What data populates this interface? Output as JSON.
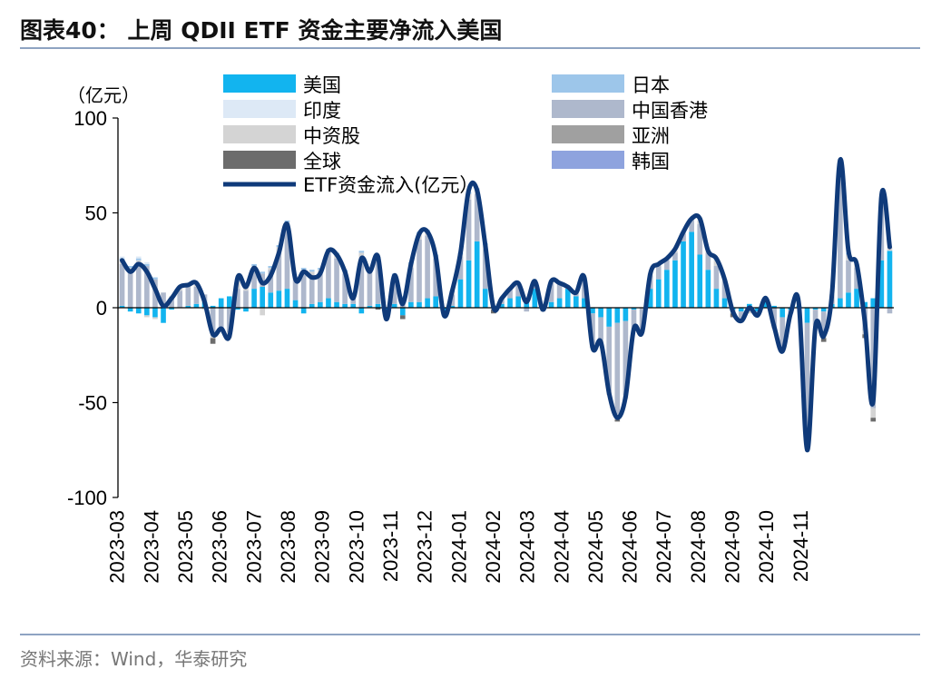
{
  "title": "图表40： 上周 QDII ETF 资金主要净流入美国",
  "source": "资料来源：Wind，华泰研究",
  "chart_data": {
    "type": "bar+line",
    "unit_label": "（亿元）",
    "ylim": [
      -100,
      100
    ],
    "yticks": [
      100,
      50,
      0,
      -50,
      -100
    ],
    "xticks": [
      "2023-03",
      "2023-04",
      "2023-05",
      "2023-06",
      "2023-07",
      "2023-08",
      "2023-09",
      "2023-10",
      "2023-11",
      "2023-12",
      "2024-01",
      "2024-02",
      "2024-03",
      "2024-04",
      "2024-05",
      "2024-06",
      "2024-07",
      "2024-08",
      "2024-09",
      "2024-10",
      "2024-11"
    ],
    "colors": {
      "美国": "#12b4ef",
      "日本": "#9dc6ea",
      "印度": "#dde9f6",
      "中国香港": "#aeb8cc",
      "中资股": "#d4d4d4",
      "亚洲": "#a0a0a0",
      "全球": "#6c6c6c",
      "韩国": "#8ea3de",
      "ETF资金流入": "#0f3a7a"
    },
    "legend": [
      {
        "name": "美国",
        "label": "美国",
        "kind": "bar"
      },
      {
        "name": "日本",
        "label": "日本",
        "kind": "bar"
      },
      {
        "name": "印度",
        "label": "印度",
        "kind": "bar"
      },
      {
        "name": "中国香港",
        "label": "中国香港",
        "kind": "bar"
      },
      {
        "name": "中资股",
        "label": "中资股",
        "kind": "bar"
      },
      {
        "name": "亚洲",
        "label": "亚洲",
        "kind": "bar"
      },
      {
        "name": "全球",
        "label": "全球",
        "kind": "bar"
      },
      {
        "name": "韩国",
        "label": "韩国",
        "kind": "bar"
      },
      {
        "name": "ETF资金流入",
        "label": "ETF资金流入(亿元）",
        "kind": "line"
      }
    ],
    "line": {
      "name": "ETF资金流入",
      "values": [
        25,
        19,
        23,
        19,
        10,
        1,
        5,
        11,
        12,
        13,
        3,
        -14,
        -11,
        -15,
        16,
        11,
        21,
        13,
        17,
        29,
        44,
        15,
        19,
        16,
        18,
        30,
        28,
        19,
        5,
        26,
        19,
        27,
        -6,
        17,
        2,
        23,
        39,
        40,
        27,
        -4,
        9,
        29,
        62,
        62,
        33,
        0,
        5,
        10,
        13,
        3,
        14,
        -1,
        14,
        13,
        11,
        8,
        16,
        -21,
        -18,
        -45,
        -58,
        -47,
        -11,
        -13,
        18,
        23,
        26,
        31,
        40,
        47,
        47,
        30,
        26,
        15,
        -2,
        -7,
        0,
        -4,
        5,
        -10,
        -23,
        -3,
        2,
        -75,
        -10,
        -15,
        7,
        78,
        30,
        23,
        -8,
        -49,
        59,
        32
      ]
    },
    "series": [
      {
        "name": "美国",
        "values": [
          1,
          -2,
          -3,
          -4,
          -5,
          -8,
          -1,
          0,
          1,
          2,
          3,
          1,
          5,
          6,
          -1,
          -2,
          10,
          11,
          8,
          9,
          10,
          4,
          -3,
          2,
          3,
          5,
          3,
          2,
          2,
          -3,
          1,
          2,
          -1,
          2,
          -4,
          3,
          3,
          5,
          6,
          -2,
          1,
          15,
          25,
          35,
          10,
          1,
          2,
          5,
          6,
          5,
          10,
          -1,
          3,
          5,
          10,
          6,
          5,
          -3,
          -5,
          -10,
          -8,
          -7,
          -1,
          0,
          10,
          15,
          20,
          25,
          35,
          40,
          28,
          20,
          10,
          5,
          -1,
          -2,
          2,
          -2,
          3,
          1,
          -5,
          -1,
          1,
          -8,
          -1,
          -2,
          2,
          5,
          8,
          10,
          3,
          5,
          25,
          30
        ]
      },
      {
        "name": "中国香港",
        "values": [
          22,
          20,
          24,
          22,
          15,
          8,
          5,
          9,
          10,
          9,
          4,
          -14,
          -12,
          -13,
          10,
          9,
          10,
          7,
          12,
          20,
          34,
          12,
          18,
          14,
          15,
          24,
          23,
          16,
          4,
          24,
          18,
          23,
          -5,
          14,
          4,
          18,
          33,
          33,
          20,
          -1,
          6,
          12,
          32,
          25,
          21,
          0,
          3,
          5,
          6,
          -2,
          4,
          -1,
          10,
          7,
          1,
          2,
          10,
          -16,
          -12,
          -34,
          -48,
          -39,
          -9,
          -12,
          7,
          7,
          5,
          4,
          4,
          6,
          16,
          9,
          12,
          9,
          -1,
          -4,
          -2,
          -2,
          2,
          -10,
          -17,
          -2,
          0,
          -60,
          -8,
          -12,
          4,
          63,
          17,
          11,
          -12,
          -53,
          30,
          -3
        ]
      },
      {
        "name": "中资股",
        "values": [
          2,
          1,
          1,
          -1,
          -1,
          0,
          1,
          1,
          1,
          1,
          -1,
          -2,
          0,
          -3,
          4,
          2,
          2,
          -4,
          1,
          3,
          1,
          0,
          2,
          3,
          2,
          1,
          2,
          1,
          0,
          5,
          1,
          1,
          0,
          1,
          1,
          2,
          3,
          2,
          1,
          -1,
          1,
          1,
          3,
          2,
          2,
          -1,
          0,
          0,
          1,
          0,
          0,
          0,
          1,
          1,
          0,
          0,
          1,
          -2,
          -1,
          -2,
          -3,
          -2,
          -1,
          -1,
          1,
          1,
          1,
          1,
          1,
          1,
          2,
          1,
          3,
          1,
          -1,
          -1,
          -1,
          0,
          0,
          -1,
          -1,
          0,
          0,
          -3,
          -1,
          -2,
          1,
          5,
          3,
          2,
          -2,
          -5,
          3,
          2
        ]
      },
      {
        "name": "日本",
        "values": [
          1,
          1,
          1,
          1,
          1,
          0,
          0,
          0,
          0,
          0,
          0,
          0,
          0,
          0,
          1,
          1,
          1,
          1,
          1,
          1,
          1,
          0,
          1,
          1,
          1,
          1,
          1,
          1,
          0,
          1,
          1,
          1,
          0,
          1,
          1,
          1,
          1,
          1,
          1,
          0,
          1,
          1,
          1,
          1,
          1,
          0,
          0,
          0,
          0,
          0,
          0,
          0,
          0,
          0,
          0,
          0,
          0,
          0,
          0,
          0,
          0,
          0,
          0,
          0,
          0,
          0,
          0,
          0,
          0,
          0,
          0,
          0,
          1,
          0,
          0,
          0,
          0,
          0,
          0,
          0,
          0,
          0,
          0,
          0,
          0,
          0,
          0,
          1,
          1,
          0,
          0,
          0,
          0,
          0
        ]
      },
      {
        "name": "印度",
        "values": [
          1,
          0,
          1,
          1,
          0,
          0,
          0,
          0,
          0,
          0,
          0,
          0,
          0,
          0,
          0,
          0,
          0,
          0,
          0,
          0,
          0,
          0,
          0,
          0,
          0,
          0,
          0,
          0,
          0,
          0,
          0,
          0,
          0,
          0,
          0,
          0,
          0,
          0,
          0,
          0,
          0,
          0,
          0,
          0,
          0,
          0,
          0,
          0,
          0,
          0,
          0,
          0,
          0,
          0,
          0,
          0,
          0,
          0,
          0,
          0,
          0,
          0,
          0,
          0,
          0,
          0,
          0,
          0,
          0,
          0,
          0,
          0,
          0,
          0,
          0,
          0,
          0,
          0,
          0,
          0,
          0,
          0,
          0,
          0,
          0,
          0,
          0,
          1,
          1,
          0,
          0,
          0,
          0,
          0
        ]
      },
      {
        "name": "亚洲",
        "values": [
          0,
          0,
          0,
          0,
          0,
          0,
          0,
          0,
          0,
          0,
          0,
          0,
          0,
          0,
          0,
          0,
          0,
          0,
          0,
          0,
          0,
          0,
          0,
          0,
          0,
          0,
          0,
          0,
          0,
          0,
          0,
          0,
          0,
          0,
          0,
          0,
          0,
          0,
          0,
          0,
          0,
          0,
          0,
          0,
          0,
          0,
          0,
          0,
          0,
          0,
          0,
          0,
          0,
          0,
          0,
          0,
          0,
          0,
          0,
          0,
          0,
          0,
          0,
          0,
          0,
          0,
          0,
          0,
          0,
          0,
          0,
          0,
          0,
          0,
          0,
          0,
          0,
          0,
          0,
          0,
          0,
          0,
          0,
          0,
          0,
          0,
          0,
          0,
          0,
          0,
          0,
          0,
          0,
          0
        ]
      },
      {
        "name": "全球",
        "values": [
          0,
          0,
          0,
          0,
          0,
          0,
          0,
          0,
          0,
          0,
          0,
          -3,
          0,
          0,
          0,
          0,
          0,
          0,
          0,
          0,
          0,
          0,
          0,
          0,
          0,
          0,
          0,
          0,
          0,
          0,
          0,
          -1,
          0,
          0,
          -2,
          0,
          0,
          0,
          0,
          0,
          0,
          0,
          0,
          0,
          0,
          -2,
          0,
          0,
          0,
          0,
          0,
          0,
          0,
          0,
          0,
          0,
          0,
          0,
          0,
          0,
          -1,
          0,
          0,
          0,
          0,
          0,
          0,
          0,
          0,
          0,
          0,
          0,
          0,
          0,
          -2,
          0,
          0,
          0,
          0,
          0,
          0,
          0,
          0,
          0,
          0,
          -2,
          0,
          0,
          0,
          0,
          -2,
          -2,
          0,
          0
        ]
      },
      {
        "name": "韩国",
        "values": [
          0,
          0,
          0,
          0,
          0,
          0,
          0,
          0,
          0,
          0,
          0,
          0,
          0,
          0,
          0,
          0,
          0,
          0,
          0,
          0,
          0,
          0,
          0,
          0,
          0,
          0,
          0,
          0,
          0,
          0,
          0,
          0,
          0,
          0,
          0,
          0,
          0,
          0,
          0,
          0,
          0,
          0,
          0,
          0,
          0,
          0,
          0,
          0,
          0,
          0,
          0,
          0,
          0,
          0,
          0,
          0,
          0,
          0,
          0,
          0,
          0,
          0,
          0,
          0,
          0,
          0,
          0,
          0,
          0,
          0,
          0,
          0,
          0,
          0,
          0,
          0,
          0,
          0,
          0,
          0,
          0,
          0,
          0,
          0,
          0,
          0,
          0,
          0,
          0,
          0,
          0,
          0,
          0,
          0
        ]
      }
    ]
  }
}
